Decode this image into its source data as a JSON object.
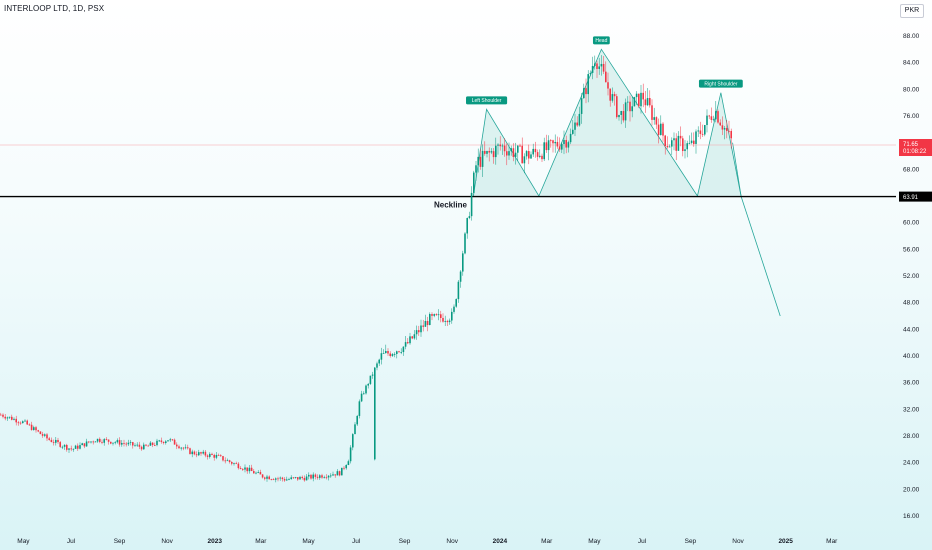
{
  "header": {
    "symbol_title": "INTERLOOP LTD, 1D, PSX",
    "currency": "PKR"
  },
  "colors": {
    "up": "#089981",
    "down": "#f23645",
    "neckline": "#000000",
    "pattern_fill": "#b9e4df",
    "pattern_line": "#26a69a",
    "price_line": "#f5a2a8"
  },
  "chart_data": {
    "type": "candlestick",
    "title": "INTERLOOP LTD, 1D, PSX",
    "ylim": [
      15,
      90.5
    ],
    "y_ticks": [
      "88.00",
      "84.00",
      "80.00",
      "76.00",
      "72.00",
      "68.00",
      "64.00",
      "60.00",
      "56.00",
      "52.00",
      "48.00",
      "44.00",
      "40.00",
      "36.00",
      "32.00",
      "28.00",
      "24.00",
      "20.00",
      "16.00"
    ],
    "x_ticks": [
      {
        "label": "May",
        "bold": false
      },
      {
        "label": "Jul",
        "bold": false
      },
      {
        "label": "Sep",
        "bold": false
      },
      {
        "label": "Nov",
        "bold": false
      },
      {
        "label": "2023",
        "bold": true
      },
      {
        "label": "Mar",
        "bold": false
      },
      {
        "label": "May",
        "bold": false
      },
      {
        "label": "Jul",
        "bold": false
      },
      {
        "label": "Sep",
        "bold": false
      },
      {
        "label": "Nov",
        "bold": false
      },
      {
        "label": "2024",
        "bold": true
      },
      {
        "label": "Mar",
        "bold": false
      },
      {
        "label": "May",
        "bold": false
      },
      {
        "label": "Jul",
        "bold": false
      },
      {
        "label": "Sep",
        "bold": false
      },
      {
        "label": "Nov",
        "bold": false
      },
      {
        "label": "2025",
        "bold": true
      },
      {
        "label": "Mar",
        "bold": false
      }
    ],
    "price_path": [
      [
        "2022-04",
        31.2
      ],
      [
        "2022-05",
        30.0
      ],
      [
        "2022-06",
        27.5
      ],
      [
        "2022-07",
        26.0
      ],
      [
        "2022-08",
        27.5
      ],
      [
        "2022-09",
        27.0
      ],
      [
        "2022-10",
        26.3
      ],
      [
        "2022-11",
        27.5
      ],
      [
        "2022-12",
        25.5
      ],
      [
        "2023-01",
        25.0
      ],
      [
        "2023-02",
        23.5
      ],
      [
        "2023-03",
        22.0
      ],
      [
        "2023-04",
        21.5
      ],
      [
        "2023-05",
        21.8
      ],
      [
        "2023-06-10",
        22.5
      ],
      [
        "2023-06-20",
        24.5
      ],
      [
        "2023-07-05",
        33.5
      ],
      [
        "2023-08",
        40.0
      ],
      [
        "2023-09",
        41.5
      ],
      [
        "2023-10",
        45.5
      ],
      [
        "2023-11",
        46.0
      ],
      [
        "2023-12",
        69.0
      ],
      [
        "2024-01",
        71.5
      ],
      [
        "2024-02",
        70.0
      ],
      [
        "2024-03",
        71.0
      ],
      [
        "2024-04",
        73.0
      ],
      [
        "2024-05",
        85.0
      ],
      [
        "2024-06",
        76.0
      ],
      [
        "2024-07",
        79.0
      ],
      [
        "2024-08",
        72.0
      ],
      [
        "2024-09",
        71.5
      ],
      [
        "2024-10",
        77.0
      ],
      [
        "2024-10-25",
        71.65
      ]
    ],
    "pattern": {
      "name": "Head and Shoulders",
      "points": [
        {
          "label": "Left Shoulder",
          "date": "2023-12-15",
          "price": 77.0
        },
        {
          "label": "",
          "date": "2024-02-20",
          "price": 64.0
        },
        {
          "label": "Head",
          "date": "2024-05-10",
          "price": 86.0
        },
        {
          "label": "",
          "date": "2024-09-10",
          "price": 64.0
        },
        {
          "label": "Right Shoulder",
          "date": "2024-10-10",
          "price": 79.5
        }
      ],
      "neckline_label": "Neckline",
      "neckline_price": 63.91,
      "projection": [
        [
          "2024-10-25",
          72.0
        ],
        [
          "2024-11-05",
          63.9
        ],
        [
          "2024-12-25",
          46.0
        ]
      ]
    },
    "last_price": "71.65",
    "countdown": "01:08:22",
    "neckline_value": "63.91"
  }
}
